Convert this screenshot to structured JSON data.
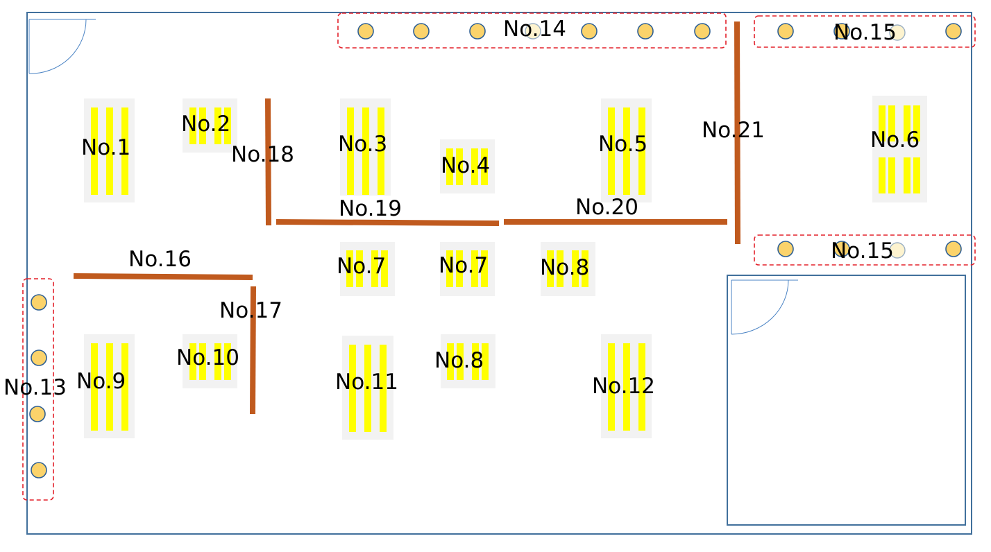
{
  "floor_plan": {
    "stations": [
      {
        "id": "s1",
        "label": "No.1"
      },
      {
        "id": "s2",
        "label": "No.2"
      },
      {
        "id": "s3",
        "label": "No.3"
      },
      {
        "id": "s4",
        "label": "No.4"
      },
      {
        "id": "s5",
        "label": "No.5"
      },
      {
        "id": "s6",
        "label": "No.6"
      },
      {
        "id": "s7a",
        "label": "No.7"
      },
      {
        "id": "s7b",
        "label": "No.7"
      },
      {
        "id": "s8a",
        "label": "No.8"
      },
      {
        "id": "s8b",
        "label": "No.8"
      },
      {
        "id": "s9",
        "label": "No.9"
      },
      {
        "id": "s10",
        "label": "No.10"
      },
      {
        "id": "s11",
        "label": "No.11"
      },
      {
        "id": "s12",
        "label": "No.12"
      }
    ],
    "lamp_groups": [
      {
        "id": "g13",
        "label": "No.13"
      },
      {
        "id": "g14",
        "label": "No.14"
      },
      {
        "id": "g15a",
        "label": "No.15"
      },
      {
        "id": "g15b",
        "label": "No.15"
      }
    ],
    "walls": [
      {
        "id": "w16",
        "label": "No.16"
      },
      {
        "id": "w17",
        "label": "No.17"
      },
      {
        "id": "w18",
        "label": "No.18"
      },
      {
        "id": "w19",
        "label": "No.19"
      },
      {
        "id": "w20",
        "label": "No.20"
      },
      {
        "id": "w21",
        "label": "No.21"
      }
    ]
  },
  "colors": {
    "wall": "#c05a1e",
    "fixture": "#ffff00",
    "fixture_pad": "#f2f2f2",
    "lamp_fill": "#fbd36b",
    "lamp_outline": "#2e5f94",
    "group_outline": "#e3202a",
    "room_outline": "#41709c"
  }
}
